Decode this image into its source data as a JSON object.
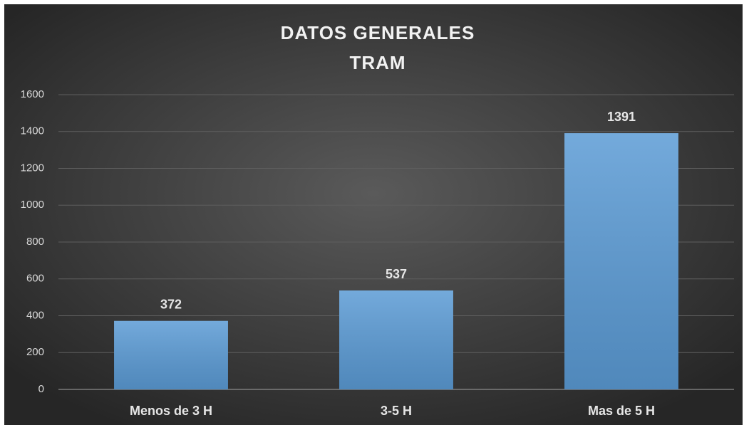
{
  "chart_data": {
    "type": "bar",
    "title": [
      "DATOS  GENERALES",
      "TRAM"
    ],
    "categories": [
      "Menos de 3 H",
      "3-5 H",
      "Mas de 5 H"
    ],
    "values": [
      372,
      537,
      1391
    ],
    "color": "#5b9bd5",
    "ylim": [
      0,
      1600
    ],
    "yticks": [
      0,
      200,
      400,
      600,
      800,
      1000,
      1200,
      1400,
      1600
    ],
    "grid": true
  }
}
